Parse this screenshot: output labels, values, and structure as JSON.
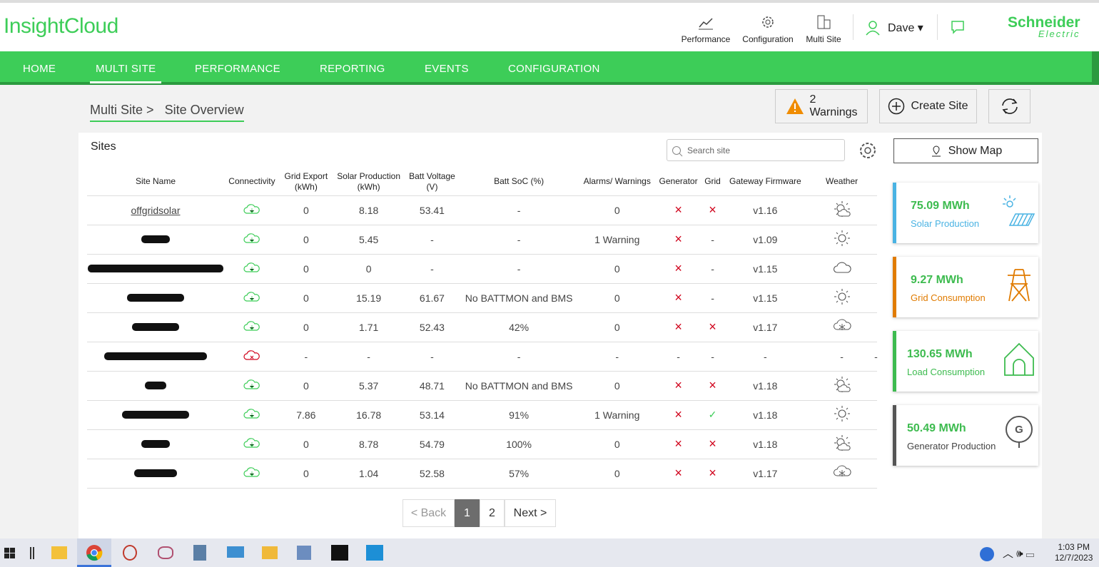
{
  "header": {
    "logo": "InsightCloud",
    "tools": [
      "Performance",
      "Configuration",
      "Multi Site"
    ],
    "user": "Dave",
    "brand": "Schneider",
    "brand_sub": "Electric"
  },
  "menu": [
    "HOME",
    "MULTI SITE",
    "PERFORMANCE",
    "REPORTING",
    "EVENTS",
    "CONFIGURATION"
  ],
  "breadcrumb": [
    "Multi Site >",
    "Site Overview"
  ],
  "actions": {
    "warnings_count": "2",
    "warnings": "Warnings",
    "create": "Create Site"
  },
  "sites": {
    "title": "Sites",
    "search_placeholder": "Search site",
    "show_map": "Show Map",
    "columns": [
      "Site Name",
      "Connectivity",
      "Grid Export (kWh)",
      "Solar Production (kWh)",
      "Batt Voltage (V)",
      "Batt SoC (%)",
      "Alarms/ Warnings",
      "Generator",
      "Grid",
      "Gateway Firmware",
      "Weather"
    ],
    "rows": [
      [
        "offgridsolar",
        "0",
        "8.18",
        "53.41",
        "-",
        "0",
        "×",
        "×",
        "v1.16",
        null
      ],
      [
        null,
        "0",
        "5.45",
        "-",
        "-",
        "1 Warning",
        "×",
        "-",
        "v1.09",
        null
      ],
      [
        null,
        "0",
        "0",
        "-",
        "-",
        "0",
        "×",
        "-",
        "v1.15",
        null
      ],
      [
        null,
        "0",
        "15.19",
        "61.67",
        "No BATTMON and BMS",
        "0",
        "×",
        "-",
        "v1.15",
        null
      ],
      [
        null,
        "0",
        "1.71",
        "52.43",
        "42%",
        "0",
        "×",
        "×",
        "v1.17",
        null
      ],
      [
        null,
        "-",
        "-",
        "-",
        "-",
        "-",
        "-",
        "-",
        "-",
        "-",
        "-"
      ],
      [
        null,
        "0",
        "5.37",
        "48.71",
        "No BATTMON and BMS",
        "0",
        "×",
        "×",
        "v1.18",
        null
      ],
      [
        null,
        "7.86",
        "16.78",
        "53.14",
        "91%",
        "1 Warning",
        "×",
        "✓",
        "v1.18",
        null
      ],
      [
        null,
        "0",
        "8.78",
        "54.79",
        "100%",
        "0",
        "×",
        "×",
        "v1.18",
        null
      ],
      [
        null,
        "0",
        "1.04",
        "52.58",
        "57%",
        "0",
        "×",
        "×",
        "v1.17",
        null
      ]
    ],
    "pagination": [
      "< Back",
      "1",
      "2",
      "Next >"
    ]
  },
  "cards": [
    {
      "value": "75.09 MWh",
      "label": "Solar Production"
    },
    {
      "value": "9.27 MWh",
      "label": "Grid Consumption"
    },
    {
      "value": "130.65 MWh",
      "label": "Load Consumption"
    },
    {
      "value": "50.49 MWh",
      "label": "Generator Production"
    }
  ],
  "generator_letter": "G",
  "taskbar": {
    "time": "1:03 PM",
    "date": "12/7/2023"
  }
}
